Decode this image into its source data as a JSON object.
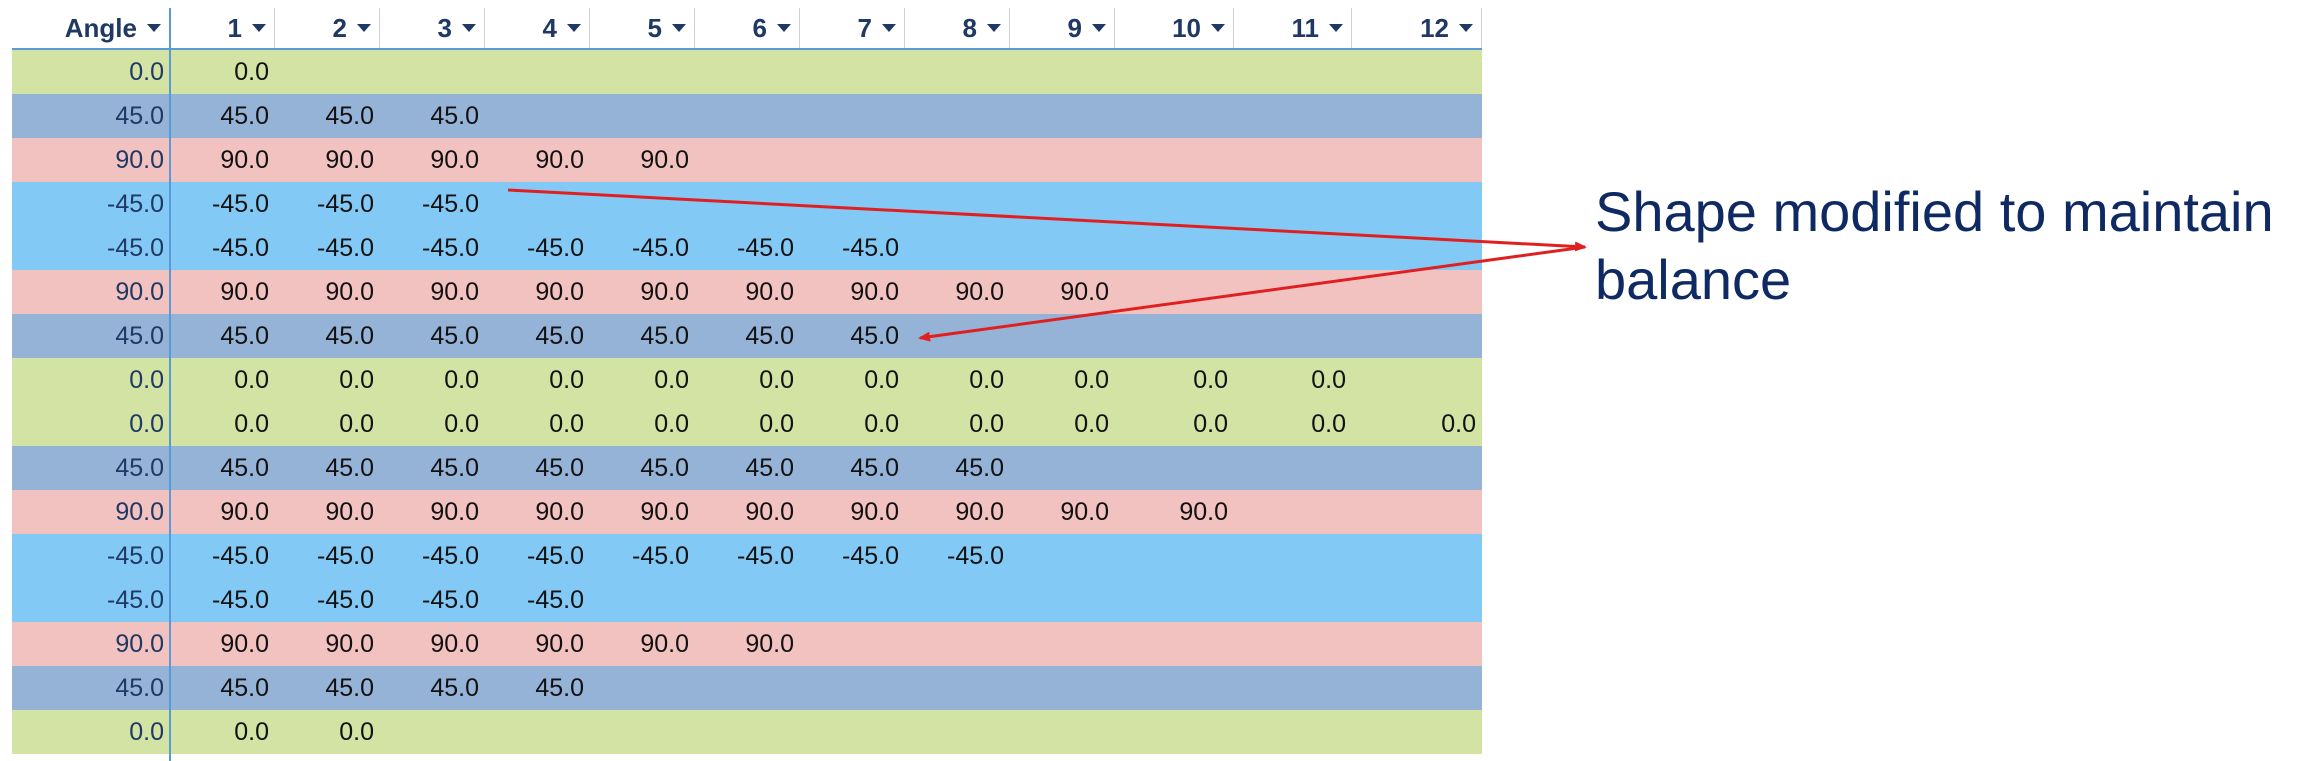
{
  "headers": [
    "Angle",
    "1",
    "2",
    "3",
    "4",
    "5",
    "6",
    "7",
    "8",
    "9",
    "10",
    "11",
    "12"
  ],
  "rows": [
    {
      "color": "green",
      "angle": "0.0",
      "values": [
        "0.0"
      ]
    },
    {
      "color": "blue",
      "angle": "45.0",
      "values": [
        "45.0",
        "45.0",
        "45.0"
      ]
    },
    {
      "color": "pink",
      "angle": "90.0",
      "values": [
        "90.0",
        "90.0",
        "90.0",
        "90.0",
        "90.0"
      ]
    },
    {
      "color": "sky",
      "angle": "-45.0",
      "values": [
        "-45.0",
        "-45.0",
        "-45.0"
      ]
    },
    {
      "color": "sky",
      "angle": "-45.0",
      "values": [
        "-45.0",
        "-45.0",
        "-45.0",
        "-45.0",
        "-45.0",
        "-45.0",
        "-45.0"
      ]
    },
    {
      "color": "pink",
      "angle": "90.0",
      "values": [
        "90.0",
        "90.0",
        "90.0",
        "90.0",
        "90.0",
        "90.0",
        "90.0",
        "90.0",
        "90.0"
      ]
    },
    {
      "color": "blue",
      "angle": "45.0",
      "values": [
        "45.0",
        "45.0",
        "45.0",
        "45.0",
        "45.0",
        "45.0",
        "45.0"
      ]
    },
    {
      "color": "green",
      "angle": "0.0",
      "values": [
        "0.0",
        "0.0",
        "0.0",
        "0.0",
        "0.0",
        "0.0",
        "0.0",
        "0.0",
        "0.0",
        "0.0",
        "0.0"
      ]
    },
    {
      "color": "green",
      "angle": "0.0",
      "values": [
        "0.0",
        "0.0",
        "0.0",
        "0.0",
        "0.0",
        "0.0",
        "0.0",
        "0.0",
        "0.0",
        "0.0",
        "0.0",
        "0.0"
      ]
    },
    {
      "color": "blue",
      "angle": "45.0",
      "values": [
        "45.0",
        "45.0",
        "45.0",
        "45.0",
        "45.0",
        "45.0",
        "45.0",
        "45.0"
      ]
    },
    {
      "color": "pink",
      "angle": "90.0",
      "values": [
        "90.0",
        "90.0",
        "90.0",
        "90.0",
        "90.0",
        "90.0",
        "90.0",
        "90.0",
        "90.0",
        "90.0"
      ]
    },
    {
      "color": "sky",
      "angle": "-45.0",
      "values": [
        "-45.0",
        "-45.0",
        "-45.0",
        "-45.0",
        "-45.0",
        "-45.0",
        "-45.0",
        "-45.0"
      ]
    },
    {
      "color": "sky",
      "angle": "-45.0",
      "values": [
        "-45.0",
        "-45.0",
        "-45.0",
        "-45.0"
      ]
    },
    {
      "color": "pink",
      "angle": "90.0",
      "values": [
        "90.0",
        "90.0",
        "90.0",
        "90.0",
        "90.0",
        "90.0"
      ]
    },
    {
      "color": "blue",
      "angle": "45.0",
      "values": [
        "45.0",
        "45.0",
        "45.0",
        "45.0"
      ]
    },
    {
      "color": "green",
      "angle": "0.0",
      "values": [
        "0.0",
        "0.0"
      ]
    }
  ],
  "colors": {
    "green": "#d3e3a3",
    "blue": "#95b3d7",
    "pink": "#f2c2c0",
    "sky": "#82c9f5",
    "arrow": "#e02020",
    "annotation_text": "#0f2a63"
  },
  "annotation": {
    "text": "Shape modified to maintain balance"
  }
}
